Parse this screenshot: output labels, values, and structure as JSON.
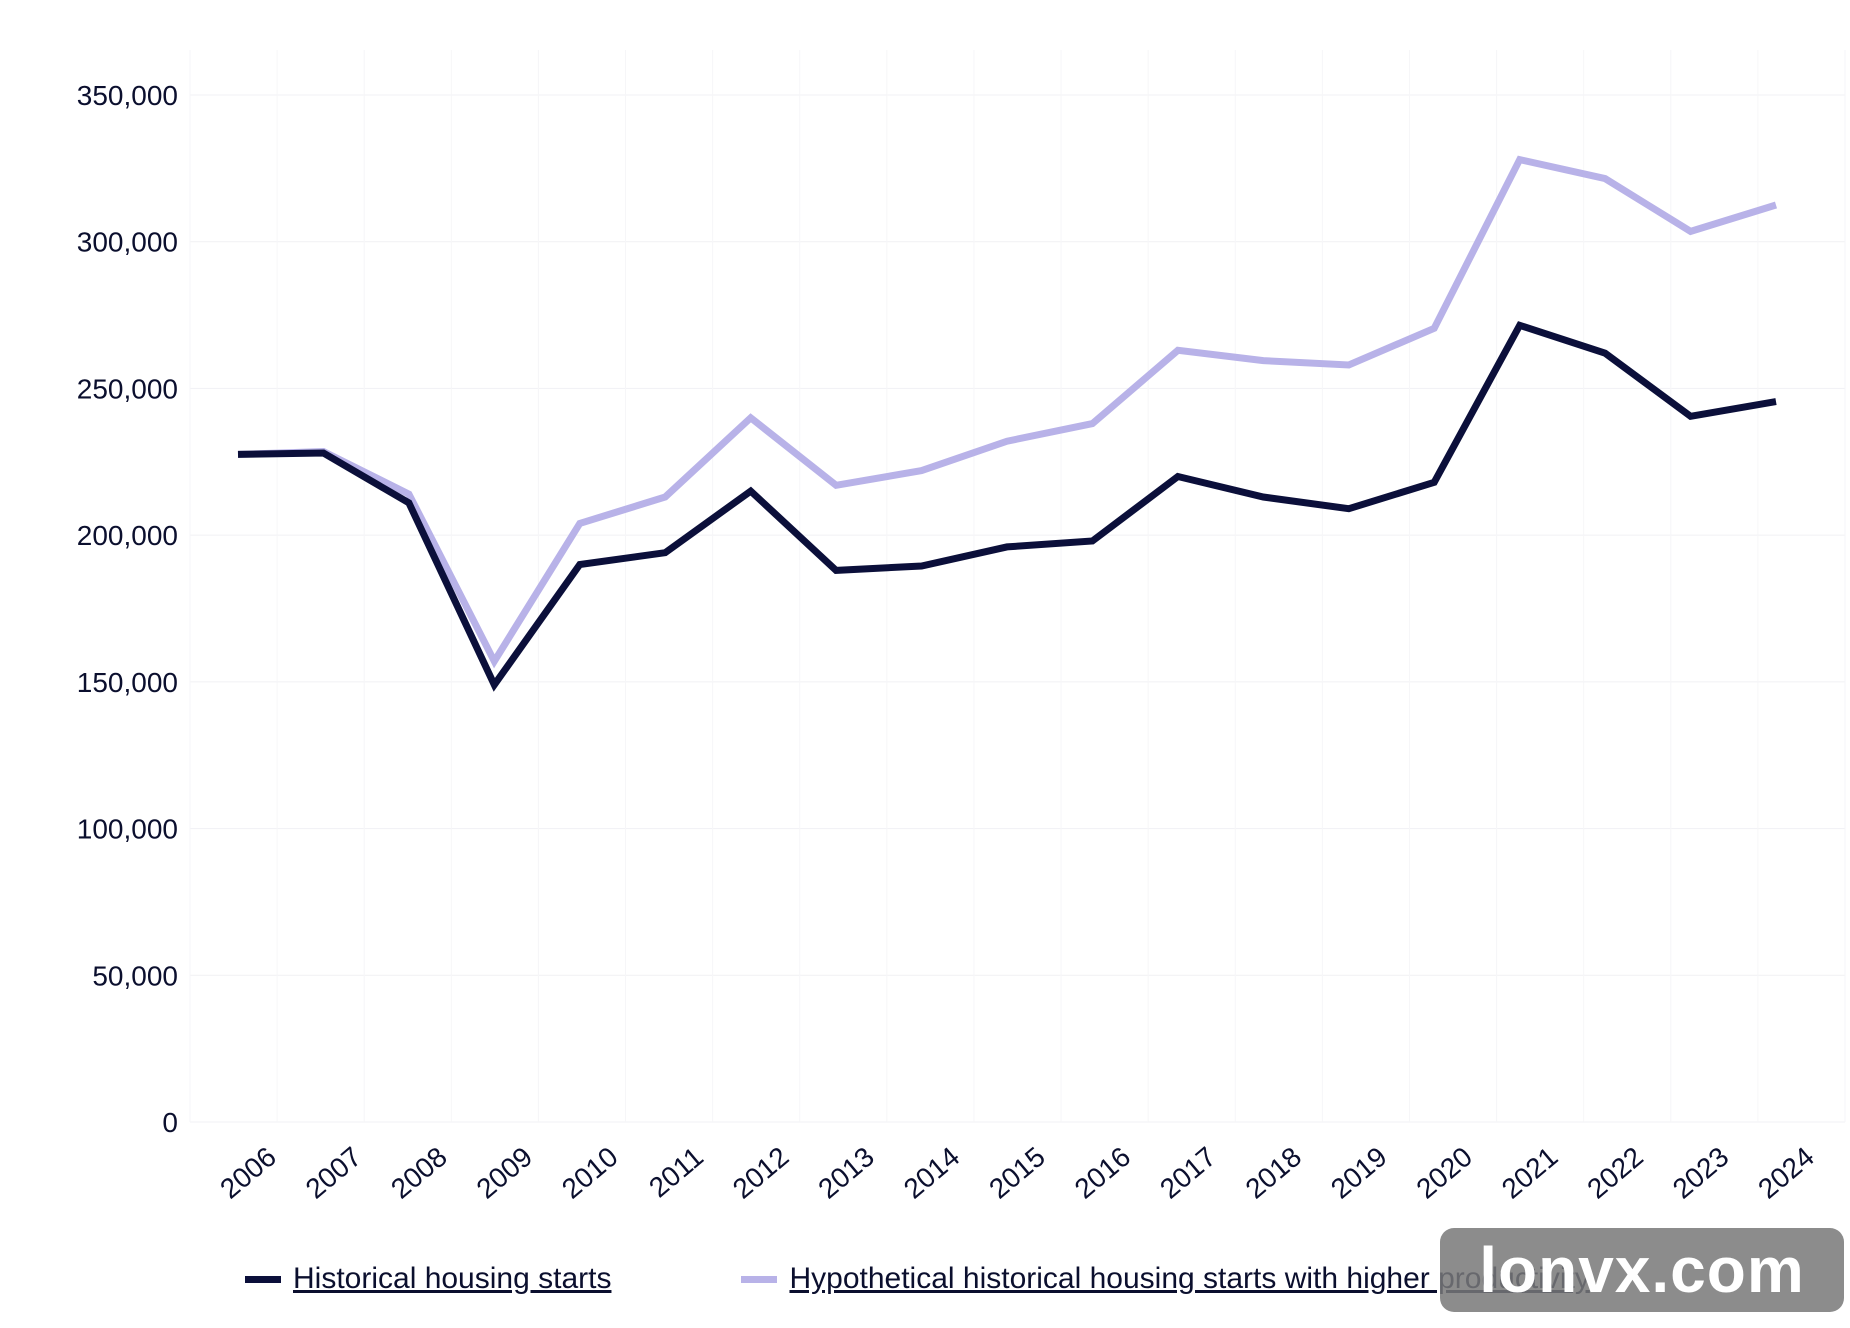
{
  "chart_data": {
    "type": "line",
    "x": [
      "2006",
      "2007",
      "2008",
      "2009",
      "2010",
      "2011",
      "2012",
      "2013",
      "2014",
      "2015",
      "2016",
      "2017",
      "2018",
      "2019",
      "2020",
      "2021",
      "2022",
      "2023",
      "2024"
    ],
    "ylim": [
      0,
      350000
    ],
    "yticks": [
      0,
      50000,
      100000,
      150000,
      200000,
      250000,
      300000,
      350000
    ],
    "ytick_labels": [
      "0",
      "50,000",
      "100,000",
      "150,000",
      "200,000",
      "250,000",
      "300,000",
      "350,000"
    ],
    "grid": true,
    "legend_position": "bottom",
    "series": [
      {
        "name": "Historical housing starts",
        "color": "#0b0f3a",
        "values": [
          227500,
          228000,
          211000,
          149000,
          190000,
          194000,
          215000,
          188000,
          189500,
          196000,
          198000,
          220000,
          213000,
          209000,
          218000,
          271500,
          262000,
          240500,
          245500
        ]
      },
      {
        "name": "Hypothetical historical housing starts with higher productivity",
        "color": "#b8b2e8",
        "values": [
          227500,
          228500,
          214000,
          157000,
          204000,
          213000,
          240000,
          217000,
          222000,
          232000,
          238000,
          263000,
          259500,
          258000,
          270500,
          328000,
          321500,
          303500,
          312500
        ]
      }
    ]
  },
  "legend": {
    "series1_label": "Historical housing starts",
    "series2_label": "Hypothetical historical housing starts with higher productivity"
  },
  "watermark": {
    "text": "lonvx.com"
  }
}
